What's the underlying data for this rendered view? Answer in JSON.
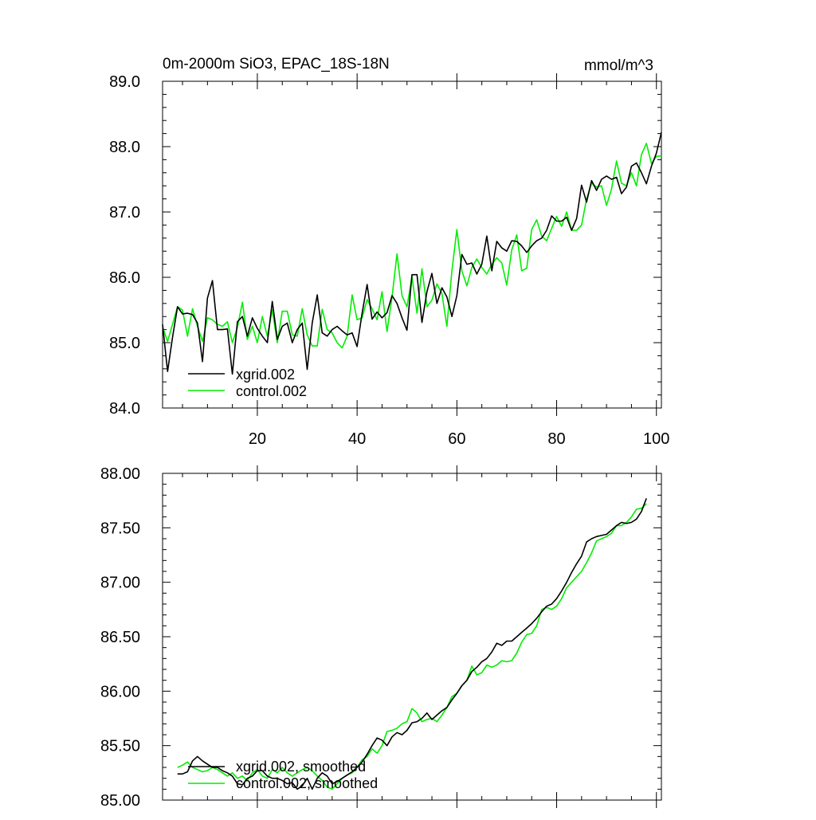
{
  "colors": {
    "xgrid": "#000000",
    "control": "#00ee00",
    "axis": "#000000",
    "background": "#ffffff"
  },
  "chart_data": [
    {
      "type": "line",
      "title": "0m-2000m SiO3, EPAC_18S-18N",
      "units": "mmol/m^3",
      "xlabel": "",
      "ylabel": "",
      "xlim": [
        1,
        101
      ],
      "ylim": [
        84.0,
        89.0
      ],
      "yticks": [
        84.0,
        85.0,
        86.0,
        87.0,
        88.0,
        89.0
      ],
      "ytick_labels": [
        "84.0",
        "85.0",
        "86.0",
        "87.0",
        "88.0",
        "89.0"
      ],
      "xticks": [
        20,
        40,
        60,
        80,
        100
      ],
      "xtick_labels": [
        "20",
        "40",
        "60",
        "80",
        "100"
      ],
      "legend_location": "bottom-left",
      "series": [
        {
          "name": "xgrid.002",
          "color": "#000000",
          "x": [
            1,
            2,
            3,
            4,
            5,
            6,
            7,
            8,
            9,
            10,
            11,
            12,
            13,
            14,
            15,
            16,
            17,
            18,
            19,
            20,
            21,
            22,
            23,
            24,
            25,
            26,
            27,
            28,
            29,
            30,
            31,
            32,
            33,
            34,
            35,
            36,
            37,
            38,
            39,
            40,
            41,
            42,
            43,
            44,
            45,
            46,
            47,
            48,
            49,
            50,
            51,
            52,
            53,
            54,
            55,
            56,
            57,
            58,
            59,
            60,
            61,
            62,
            63,
            64,
            65,
            66,
            67,
            68,
            69,
            70,
            71,
            72,
            73,
            74,
            75,
            76,
            77,
            78,
            79,
            80,
            81,
            82,
            83,
            84,
            85,
            86,
            87,
            88,
            89,
            90,
            91,
            92,
            93,
            94,
            95,
            96,
            97,
            98,
            99,
            100,
            101
          ],
          "values": [
            85.28,
            84.56,
            85.08,
            85.55,
            85.44,
            85.45,
            85.43,
            85.3,
            84.71,
            85.68,
            85.95,
            85.2,
            85.2,
            85.21,
            84.52,
            85.32,
            85.4,
            85.1,
            85.38,
            85.22,
            85.1,
            85.0,
            85.63,
            85.05,
            85.25,
            85.3,
            85.0,
            85.2,
            85.3,
            84.59,
            85.3,
            85.73,
            85.15,
            85.1,
            85.2,
            85.25,
            85.18,
            85.12,
            85.15,
            84.94,
            85.45,
            85.89,
            85.36,
            85.47,
            85.38,
            85.46,
            85.72,
            85.6,
            85.38,
            85.19,
            86.04,
            86.04,
            85.31,
            85.78,
            86.06,
            85.6,
            85.84,
            85.7,
            85.4,
            85.72,
            86.35,
            86.2,
            86.22,
            86.05,
            86.2,
            86.63,
            86.1,
            86.55,
            86.45,
            86.4,
            86.56,
            86.55,
            86.48,
            86.38,
            86.48,
            86.56,
            86.6,
            86.72,
            86.94,
            86.86,
            86.86,
            86.92,
            86.72,
            86.9,
            87.41,
            87.15,
            87.48,
            87.33,
            87.5,
            87.55,
            87.5,
            87.53,
            87.28,
            87.38,
            87.7,
            87.75,
            87.6,
            87.43,
            87.7,
            87.9,
            88.22
          ]
        },
        {
          "name": "control.002",
          "color": "#00ee00",
          "x": [
            1,
            2,
            3,
            4,
            5,
            6,
            7,
            8,
            9,
            10,
            11,
            12,
            13,
            14,
            15,
            16,
            17,
            18,
            19,
            20,
            21,
            22,
            23,
            24,
            25,
            26,
            27,
            28,
            29,
            30,
            31,
            32,
            33,
            34,
            35,
            36,
            37,
            38,
            39,
            40,
            41,
            42,
            43,
            44,
            45,
            46,
            47,
            48,
            49,
            50,
            51,
            52,
            53,
            54,
            55,
            56,
            57,
            58,
            59,
            60,
            61,
            62,
            63,
            64,
            65,
            66,
            67,
            68,
            69,
            70,
            71,
            72,
            73,
            74,
            75,
            76,
            77,
            78,
            79,
            80,
            81,
            82,
            83,
            84,
            85,
            86,
            87,
            88,
            89,
            90,
            91,
            92,
            93,
            94,
            95,
            96,
            97,
            98,
            99,
            100,
            101
          ],
          "values": [
            85.24,
            85.02,
            85.28,
            85.55,
            85.5,
            85.1,
            85.52,
            85.25,
            85.02,
            85.38,
            85.35,
            85.28,
            85.25,
            85.32,
            85.0,
            85.23,
            85.62,
            85.05,
            85.25,
            85.0,
            85.4,
            85.1,
            85.5,
            85.0,
            85.48,
            85.48,
            85.12,
            85.1,
            85.52,
            85.12,
            84.95,
            84.95,
            85.51,
            85.2,
            85.15,
            85.0,
            84.92,
            85.1,
            85.73,
            85.35,
            85.38,
            85.66,
            85.52,
            85.35,
            85.78,
            85.17,
            85.7,
            86.36,
            85.72,
            85.55,
            86.01,
            85.45,
            86.13,
            85.55,
            85.65,
            85.9,
            85.75,
            85.25,
            86.1,
            86.73,
            86.1,
            85.87,
            86.15,
            86.28,
            86.15,
            86.05,
            86.2,
            86.3,
            86.22,
            85.88,
            86.42,
            86.65,
            86.1,
            86.14,
            86.73,
            86.88,
            86.63,
            86.56,
            86.75,
            86.93,
            86.78,
            87.0,
            86.72,
            86.72,
            86.8,
            87.2,
            87.44,
            87.38,
            87.4,
            87.1,
            87.35,
            87.78,
            87.44,
            87.4,
            87.6,
            87.4,
            87.88,
            88.05,
            87.74,
            87.85,
            87.86
          ]
        }
      ]
    },
    {
      "type": "line",
      "title": "",
      "xlabel": "",
      "ylabel": "",
      "xlim": [
        1,
        101
      ],
      "ylim": [
        85.0,
        88.0
      ],
      "yticks": [
        85.0,
        85.5,
        86.0,
        86.5,
        87.0,
        87.5,
        88.0
      ],
      "ytick_labels": [
        "85.00",
        "85.50",
        "86.00",
        "86.50",
        "87.00",
        "87.50",
        "88.00"
      ],
      "xticks": [
        20,
        40,
        60,
        80,
        100
      ],
      "xtick_labels": [],
      "legend_location": "bottom-left",
      "series": [
        {
          "name": "xgrid.002, smoothed",
          "color": "#000000",
          "x": [
            4,
            5,
            6,
            7,
            8,
            9,
            10,
            11,
            12,
            13,
            14,
            15,
            16,
            17,
            18,
            19,
            20,
            21,
            22,
            23,
            24,
            25,
            26,
            27,
            28,
            29,
            30,
            31,
            32,
            33,
            34,
            35,
            36,
            37,
            38,
            39,
            40,
            41,
            42,
            43,
            44,
            45,
            46,
            47,
            48,
            49,
            50,
            51,
            52,
            53,
            54,
            55,
            56,
            57,
            58,
            59,
            60,
            61,
            62,
            63,
            64,
            65,
            66,
            67,
            68,
            69,
            70,
            71,
            72,
            73,
            74,
            75,
            76,
            77,
            78,
            79,
            80,
            81,
            82,
            83,
            84,
            85,
            86,
            87,
            88,
            89,
            90,
            91,
            92,
            93,
            94,
            95,
            96,
            97,
            98
          ],
          "values": [
            85.24,
            85.24,
            85.26,
            85.36,
            85.4,
            85.36,
            85.33,
            85.3,
            85.3,
            85.27,
            85.25,
            85.22,
            85.15,
            85.14,
            85.2,
            85.22,
            85.27,
            85.27,
            85.22,
            85.2,
            85.2,
            85.18,
            85.15,
            85.16,
            85.1,
            85.13,
            85.2,
            85.1,
            85.2,
            85.25,
            85.22,
            85.15,
            85.17,
            85.2,
            85.23,
            85.26,
            85.3,
            85.35,
            85.42,
            85.5,
            85.57,
            85.55,
            85.5,
            85.58,
            85.62,
            85.6,
            85.64,
            85.71,
            85.72,
            85.75,
            85.8,
            85.74,
            85.78,
            85.82,
            85.85,
            85.92,
            85.98,
            86.05,
            86.1,
            86.18,
            86.22,
            86.27,
            86.3,
            86.36,
            86.44,
            86.42,
            86.46,
            86.46,
            86.5,
            86.54,
            86.58,
            86.62,
            86.67,
            86.73,
            86.78,
            86.8,
            86.85,
            86.92,
            87.0,
            87.09,
            87.17,
            87.24,
            87.37,
            87.4,
            87.42,
            87.43,
            87.44,
            87.48,
            87.52,
            87.55,
            87.54,
            87.55,
            87.58,
            87.65,
            87.77
          ]
        },
        {
          "name": "control.002, smoothed",
          "color": "#00ee00",
          "x": [
            4,
            5,
            6,
            7,
            8,
            9,
            10,
            11,
            12,
            13,
            14,
            15,
            16,
            17,
            18,
            19,
            20,
            21,
            22,
            23,
            24,
            25,
            26,
            27,
            28,
            29,
            30,
            31,
            32,
            33,
            34,
            35,
            36,
            37,
            38,
            39,
            40,
            41,
            42,
            43,
            44,
            45,
            46,
            47,
            48,
            49,
            50,
            51,
            52,
            53,
            54,
            55,
            56,
            57,
            58,
            59,
            60,
            61,
            62,
            63,
            64,
            65,
            66,
            67,
            68,
            69,
            70,
            71,
            72,
            73,
            74,
            75,
            76,
            77,
            78,
            79,
            80,
            81,
            82,
            83,
            84,
            85,
            86,
            87,
            88,
            89,
            90,
            91,
            92,
            93,
            94,
            95,
            96,
            97,
            98
          ],
          "values": [
            85.3,
            85.32,
            85.35,
            85.3,
            85.28,
            85.26,
            85.27,
            85.3,
            85.28,
            85.25,
            85.22,
            85.25,
            85.2,
            85.22,
            85.18,
            85.25,
            85.28,
            85.22,
            85.2,
            85.28,
            85.25,
            85.3,
            85.25,
            85.22,
            85.25,
            85.28,
            85.3,
            85.27,
            85.22,
            85.18,
            85.12,
            85.1,
            85.15,
            85.2,
            85.23,
            85.25,
            85.3,
            85.37,
            85.4,
            85.47,
            85.43,
            85.5,
            85.63,
            85.64,
            85.66,
            85.7,
            85.72,
            85.84,
            85.8,
            85.72,
            85.74,
            85.75,
            85.72,
            85.78,
            85.85,
            85.95,
            85.98,
            86.05,
            86.1,
            86.23,
            86.15,
            86.17,
            86.24,
            86.22,
            86.24,
            86.28,
            86.27,
            86.28,
            86.35,
            86.45,
            86.52,
            86.53,
            86.6,
            86.75,
            86.77,
            86.75,
            86.78,
            86.85,
            86.95,
            87.0,
            87.05,
            87.1,
            87.18,
            87.27,
            87.38,
            87.4,
            87.42,
            87.45,
            87.52,
            87.52,
            87.55,
            87.6,
            87.67,
            87.68,
            87.72
          ]
        }
      ]
    }
  ]
}
